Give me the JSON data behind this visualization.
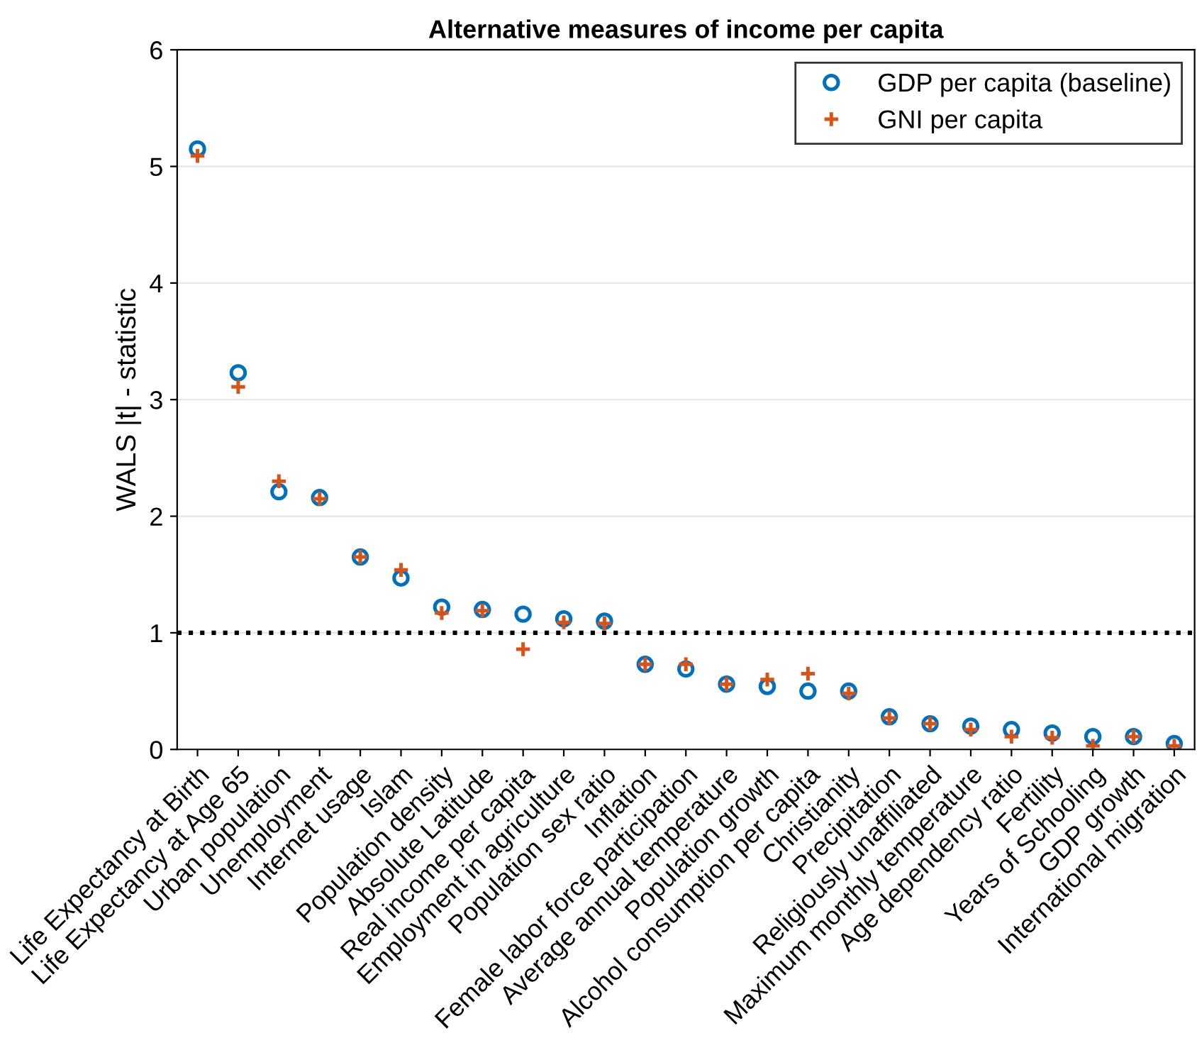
{
  "chart_data": {
    "type": "scatter",
    "title": "Alternative measures of income per capita",
    "ylabel": "WALS |t| - statistic",
    "categories": [
      "Life Expectancy at Birth",
      "Life Expectancy at Age 65",
      "Urban population",
      "Unemployment",
      "Internet usage",
      "Islam",
      "Population density",
      "Absolute Latitude",
      "Real income per capita",
      "Employment in agriculture",
      "Population sex ratio",
      "Inflation",
      "Female labor force participation",
      "Average annual temperature",
      "Population growth",
      "Alcohol consumption per capita",
      "Christianity",
      "Precipitation",
      "Religiously unaffiliated",
      "Maximum monthly temperature",
      "Age dependency ratio",
      "Fertility",
      "Years of Schooling",
      "GDP growth",
      "International migration"
    ],
    "series": [
      {
        "name": "GDP per capita (baseline)",
        "color": "#0072bd",
        "marker": "circle",
        "values": [
          5.15,
          3.23,
          2.21,
          2.16,
          1.65,
          1.47,
          1.22,
          1.2,
          1.16,
          1.12,
          1.1,
          0.73,
          0.69,
          0.56,
          0.54,
          0.5,
          0.5,
          0.28,
          0.22,
          0.2,
          0.17,
          0.14,
          0.11,
          0.11,
          0.05
        ]
      },
      {
        "name": "GNI per capita",
        "color": "#d95319",
        "marker": "cross",
        "values": [
          5.09,
          3.11,
          2.3,
          2.15,
          1.65,
          1.54,
          1.17,
          1.19,
          0.86,
          1.09,
          1.08,
          0.73,
          0.73,
          0.56,
          0.6,
          0.65,
          0.48,
          0.27,
          0.22,
          0.17,
          0.11,
          0.1,
          0.03,
          0.11,
          0.03
        ]
      }
    ],
    "ref_lines": [
      {
        "axis": "y",
        "value": 1,
        "color": "#000000",
        "line_style": "dotted"
      }
    ],
    "ylim": [
      0,
      6
    ],
    "yticks": [
      0,
      1,
      2,
      3,
      4,
      5,
      6
    ],
    "grid": "y",
    "legend": "top right"
  }
}
